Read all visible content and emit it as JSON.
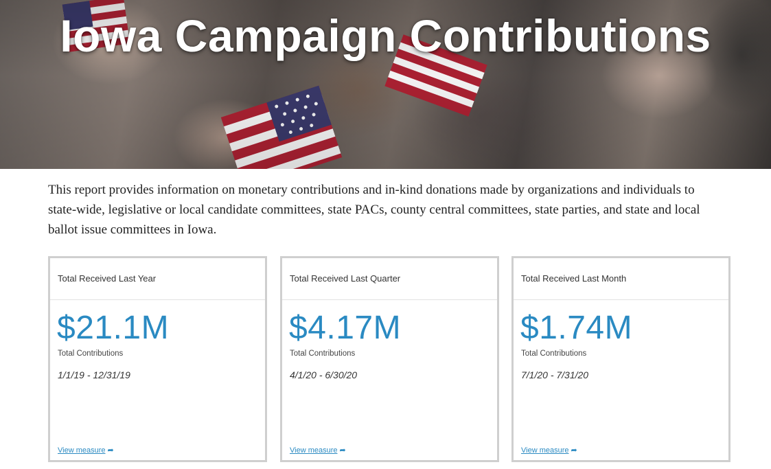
{
  "hero": {
    "title": "Iowa Campaign Contributions"
  },
  "description": "This report provides information on monetary contributions and in-kind donations made by organizations and individuals to state-wide, legislative or local candidate committees, state PACs, county central committees, state parties, and state and local ballot issue committees in Iowa.",
  "cards": [
    {
      "header": "Total Received Last Year",
      "value": "$21.1M",
      "subtitle": "Total Contributions",
      "date_range": "1/1/19 - 12/31/19",
      "link": "View measure"
    },
    {
      "header": "Total Received Last Quarter",
      "value": "$4.17M",
      "subtitle": "Total Contributions",
      "date_range": "4/1/20 - 6/30/20",
      "link": "View measure"
    },
    {
      "header": "Total Received Last Month",
      "value": "$1.74M",
      "subtitle": "Total Contributions",
      "date_range": "7/1/20 - 7/31/20",
      "link": "View measure"
    }
  ],
  "icons": {
    "link_arrow": "share-arrow-icon"
  },
  "colors": {
    "accent": "#2a8ac2",
    "card_border": "#cfcfcf"
  }
}
